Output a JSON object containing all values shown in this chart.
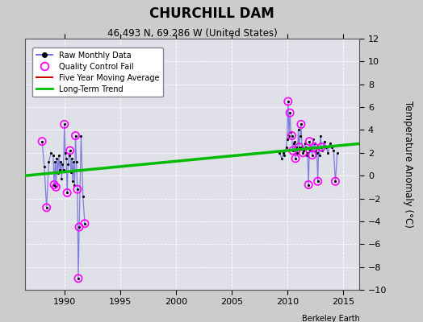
{
  "title": "CHURCHILL DAM",
  "subtitle": "46.493 N, 69.286 W (United States)",
  "ylabel": "Temperature Anomaly (°C)",
  "credit": "Berkeley Earth",
  "xlim": [
    1986.5,
    2016.5
  ],
  "ylim": [
    -10,
    12
  ],
  "yticks": [
    -10,
    -8,
    -6,
    -4,
    -2,
    0,
    2,
    4,
    6,
    8,
    10,
    12
  ],
  "xticks": [
    1990,
    1995,
    2000,
    2005,
    2010,
    2015
  ],
  "bg_color": "#cccccc",
  "plot_bg_color": "#e0e0e8",
  "grid_color": "#ffffff",
  "raw_data": [
    [
      1988.0,
      3.0
    ],
    [
      1988.2,
      0.8
    ],
    [
      1988.4,
      -2.8
    ],
    [
      1988.6,
      1.2
    ],
    [
      1988.8,
      2.0
    ],
    [
      1989.0,
      1.8
    ],
    [
      1989.08,
      -0.8
    ],
    [
      1989.17,
      1.2
    ],
    [
      1989.25,
      -1.0
    ],
    [
      1989.33,
      1.5
    ],
    [
      1989.42,
      0.2
    ],
    [
      1989.5,
      1.8
    ],
    [
      1989.58,
      0.5
    ],
    [
      1989.67,
      1.2
    ],
    [
      1989.75,
      -0.3
    ],
    [
      1989.83,
      1.0
    ],
    [
      1989.92,
      0.5
    ],
    [
      1990.0,
      4.5
    ],
    [
      1990.08,
      2.0
    ],
    [
      1990.17,
      1.5
    ],
    [
      1990.25,
      -1.5
    ],
    [
      1990.33,
      1.0
    ],
    [
      1990.42,
      1.8
    ],
    [
      1990.5,
      2.2
    ],
    [
      1990.58,
      0.3
    ],
    [
      1990.67,
      1.5
    ],
    [
      1990.75,
      -0.5
    ],
    [
      1990.83,
      1.2
    ],
    [
      1990.92,
      -0.8
    ],
    [
      1991.0,
      3.5
    ],
    [
      1991.08,
      1.2
    ],
    [
      1991.17,
      -1.2
    ],
    [
      1991.25,
      -9.0
    ],
    [
      1991.33,
      -4.5
    ],
    [
      1991.5,
      3.5
    ],
    [
      1991.67,
      -1.8
    ],
    [
      1991.83,
      -4.2
    ],
    [
      2009.33,
      2.0
    ],
    [
      2009.5,
      1.5
    ],
    [
      2009.67,
      2.0
    ],
    [
      2009.75,
      1.8
    ],
    [
      2009.83,
      2.2
    ],
    [
      2009.92,
      2.5
    ],
    [
      2010.0,
      3.2
    ],
    [
      2010.08,
      6.5
    ],
    [
      2010.17,
      3.5
    ],
    [
      2010.25,
      5.5
    ],
    [
      2010.33,
      3.8
    ],
    [
      2010.42,
      3.5
    ],
    [
      2010.5,
      2.2
    ],
    [
      2010.58,
      2.8
    ],
    [
      2010.67,
      3.0
    ],
    [
      2010.75,
      1.5
    ],
    [
      2010.83,
      2.5
    ],
    [
      2010.92,
      2.0
    ],
    [
      2011.0,
      4.0
    ],
    [
      2011.08,
      2.5
    ],
    [
      2011.17,
      3.5
    ],
    [
      2011.25,
      4.5
    ],
    [
      2011.33,
      2.5
    ],
    [
      2011.42,
      2.0
    ],
    [
      2011.5,
      2.2
    ],
    [
      2011.58,
      2.8
    ],
    [
      2011.67,
      2.5
    ],
    [
      2011.75,
      1.8
    ],
    [
      2011.83,
      2.0
    ],
    [
      2011.92,
      -0.8
    ],
    [
      2012.0,
      3.0
    ],
    [
      2012.08,
      2.2
    ],
    [
      2012.17,
      2.5
    ],
    [
      2012.25,
      1.8
    ],
    [
      2012.33,
      3.2
    ],
    [
      2012.42,
      2.5
    ],
    [
      2012.5,
      2.8
    ],
    [
      2012.58,
      2.2
    ],
    [
      2012.67,
      2.0
    ],
    [
      2012.75,
      -0.5
    ],
    [
      2012.83,
      2.5
    ],
    [
      2012.92,
      1.8
    ],
    [
      2013.0,
      3.5
    ],
    [
      2013.08,
      2.5
    ],
    [
      2013.17,
      2.2
    ],
    [
      2013.33,
      3.0
    ],
    [
      2013.5,
      2.5
    ],
    [
      2013.67,
      2.0
    ],
    [
      2013.83,
      2.8
    ],
    [
      2014.0,
      2.5
    ],
    [
      2014.17,
      2.2
    ],
    [
      2014.33,
      -0.5
    ],
    [
      2014.5,
      2.0
    ]
  ],
  "qc_fail_points": [
    [
      1988.0,
      3.0
    ],
    [
      1988.4,
      -2.8
    ],
    [
      1989.08,
      -0.8
    ],
    [
      1989.25,
      -1.0
    ],
    [
      1990.0,
      4.5
    ],
    [
      1990.25,
      -1.5
    ],
    [
      1990.5,
      2.2
    ],
    [
      1991.0,
      3.5
    ],
    [
      1991.17,
      -1.2
    ],
    [
      1991.25,
      -9.0
    ],
    [
      1991.33,
      -4.5
    ],
    [
      1991.83,
      -4.2
    ],
    [
      2010.08,
      6.5
    ],
    [
      2010.25,
      5.5
    ],
    [
      2010.42,
      3.5
    ],
    [
      2010.5,
      2.2
    ],
    [
      2010.75,
      1.5
    ],
    [
      2011.08,
      2.5
    ],
    [
      2011.25,
      4.5
    ],
    [
      2011.42,
      2.0
    ],
    [
      2011.92,
      -0.8
    ],
    [
      2012.0,
      3.0
    ],
    [
      2012.25,
      1.8
    ],
    [
      2012.42,
      2.5
    ],
    [
      2012.75,
      -0.5
    ],
    [
      2013.08,
      2.5
    ],
    [
      2014.33,
      -0.5
    ]
  ],
  "trend_x": [
    1986.5,
    2016.5
  ],
  "trend_y": [
    0.0,
    2.8
  ],
  "line_color": "#5555dd",
  "line_color_alpha": 0.7,
  "dot_color": "#000000",
  "qc_color": "#ff00ff",
  "trend_color": "#00bb00",
  "mavg_color": "#cc0000"
}
